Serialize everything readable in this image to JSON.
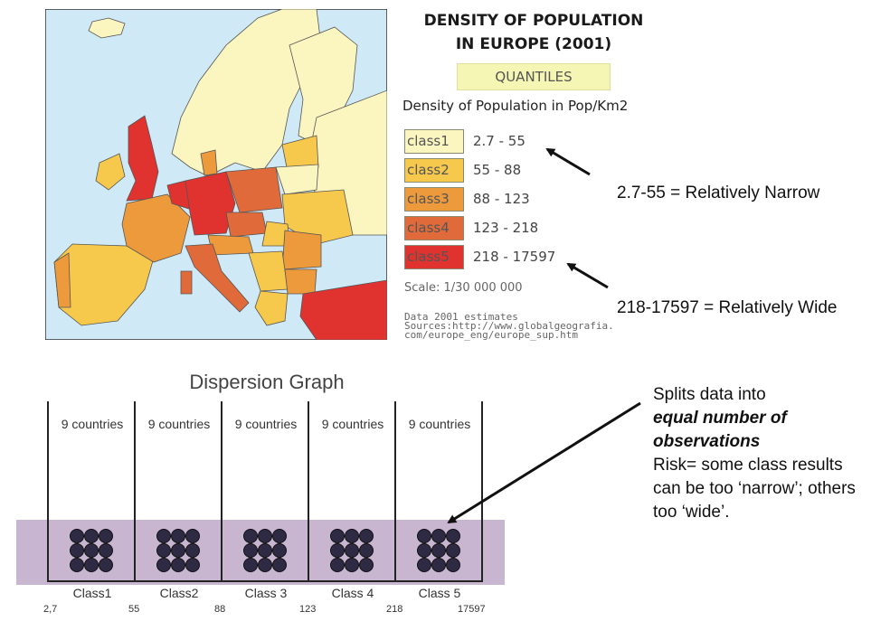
{
  "legend": {
    "title_line1": "DENSITY OF POPULATION",
    "title_line2": "IN EUROPE (2001)",
    "method": "QUANTILES",
    "subtitle": "Density of Population in Pop/Km2",
    "classes": [
      {
        "label": "class1",
        "range": "2.7 - 55",
        "color": "#fbf5c0"
      },
      {
        "label": "class2",
        "range": "55 - 88",
        "color": "#f6c84c"
      },
      {
        "label": "class3",
        "range": "88 - 123",
        "color": "#ec9a3c"
      },
      {
        "label": "class4",
        "range": "123 - 218",
        "color": "#e06a3a"
      },
      {
        "label": "class5",
        "range": "218 - 17597",
        "color": "#e0322e"
      }
    ],
    "scale": "Scale: 1/30 000 000",
    "source_lines": [
      "Data 2001 estimates",
      "Sources:http://www.globalgeografia.",
      "com/europe_eng/europe_sup.htm"
    ]
  },
  "annotations": {
    "narrow": "2.7-55 = Relatively Narrow",
    "wide": "218-17597 = Relatively Wide"
  },
  "dispersion": {
    "title": "Dispersion Graph",
    "columns": [
      {
        "count": "9 countries",
        "class": "Class1"
      },
      {
        "count": "9 countries",
        "class": "Class2"
      },
      {
        "count": "9 countries",
        "class": "Class 3"
      },
      {
        "count": "9 countries",
        "class": "Class 4"
      },
      {
        "count": "9 countries",
        "class": "Class 5"
      }
    ],
    "breaks": [
      "2,7",
      "55",
      "88",
      "123",
      "218",
      "17597"
    ],
    "dots_per_class": 9
  },
  "explanation": {
    "line1": "Splits data into",
    "emphasis": "equal number of observations",
    "rest": "Risk= some class results can be too ‘narrow’; others too ‘wide’."
  },
  "colors": {
    "sea": "#cfeaf6",
    "band": "#c8b6d0",
    "dot": "#2e2a44"
  }
}
